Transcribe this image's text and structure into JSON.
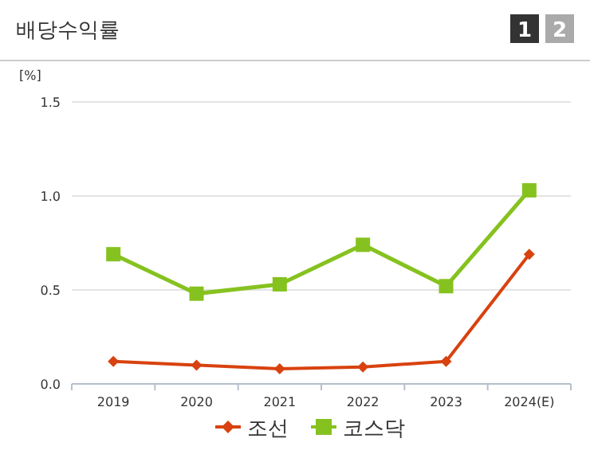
{
  "chart_data": {
    "type": "line",
    "title": "배당수익률",
    "ylabel": "[%]",
    "annotations": [
      "1",
      "2"
    ],
    "categories": [
      "2019",
      "2020",
      "2021",
      "2022",
      "2023",
      "2024(E)"
    ],
    "series": [
      {
        "name": "조선",
        "color": "#d8420f",
        "marker": "diamond",
        "values": [
          0.12,
          0.1,
          0.08,
          0.09,
          0.12,
          0.69
        ]
      },
      {
        "name": "코스닥",
        "color": "#86c21f",
        "marker": "square",
        "values": [
          0.69,
          0.48,
          0.53,
          0.74,
          0.52,
          1.03
        ]
      }
    ],
    "ylim": [
      0,
      1.5
    ],
    "yticks": [
      {
        "value": 0,
        "label": "0.0"
      },
      {
        "value": 0.5,
        "label": "0.5"
      },
      {
        "value": 1,
        "label": "1.0"
      },
      {
        "value": 1.5,
        "label": "1.5"
      }
    ],
    "grid": "y",
    "legend": "bottom"
  }
}
